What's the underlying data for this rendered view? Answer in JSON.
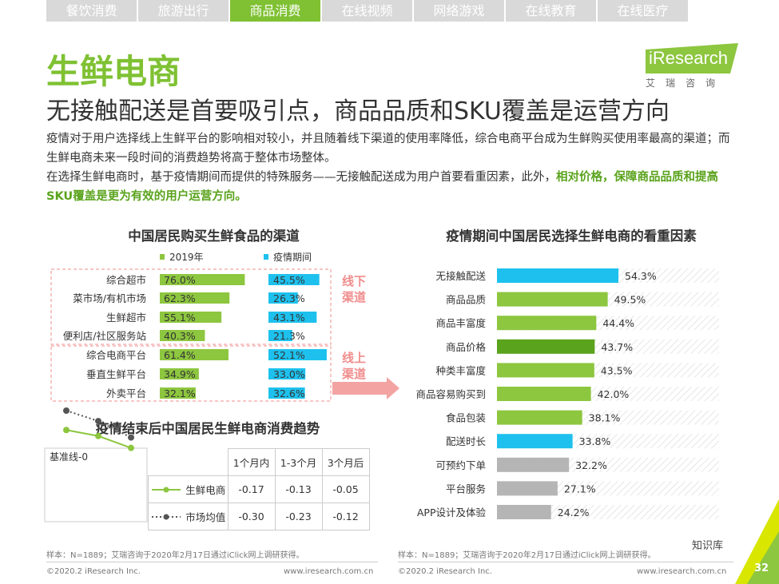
{
  "tabs": [
    "餐饮消费",
    "旅游出行",
    "商品消费",
    "在线视频",
    "网络游戏",
    "在线教育",
    "在线医疗"
  ],
  "active_tab": 2,
  "logo": {
    "text": "iResearch",
    "sub": "艾瑞咨询"
  },
  "title": "生鲜电商",
  "subtitle": "无接触配送是首要吸引点，商品品质和SKU覆盖是运营方向",
  "para1": "疫情对于用户选择线上生鲜平台的影响相对较小，并且随着线下渠道的使用率降低，综合电商平台成为生鲜购买使用率最高的渠道；而生鲜电商未来一段时间的消费趋势将高于整体市场整体。",
  "para2_plain": "在选择生鲜电商时，基于疫情期间而提供的特殊服务——无接触配送成为用户首要看重因素，此外，",
  "para2_bold": "相对价格，保障商品品质和提高SKU覆盖是更为有效的用户运营方向。",
  "colors": {
    "green": "#8dc63f",
    "blue": "#1ec1ee",
    "dark_green": "#5aa31c",
    "gray": "#b5b5b5",
    "pink": "#f08c8c"
  },
  "chart_data": [
    {
      "type": "bar",
      "title": "中国居民购买生鲜食品的渠道",
      "categories": [
        "综合超市",
        "菜市场/有机市场",
        "生鲜超市",
        "便利店/社区服务站",
        "综合电商平台",
        "垂直生鲜平台",
        "外卖平台"
      ],
      "groups": [
        {
          "label": "线下渠道",
          "count": 4
        },
        {
          "label": "线上渠道",
          "count": 3
        }
      ],
      "series": [
        {
          "name": "2019年",
          "values": [
            76.0,
            62.3,
            55.1,
            40.3,
            61.4,
            34.9,
            32.1
          ]
        },
        {
          "name": "疫情期间",
          "values": [
            45.5,
            26.3,
            43.1,
            21.3,
            52.1,
            33.0,
            32.6
          ]
        }
      ],
      "value_suffix": "%",
      "legend": "top"
    },
    {
      "type": "bar",
      "title": "疫情期间中国居民选择生鲜电商的看重因素",
      "categories": [
        "无接触配送",
        "商品品质",
        "商品丰富度",
        "商品价格",
        "种类丰富度",
        "商品容易购买到",
        "食品包装",
        "配送时长",
        "可预约下单",
        "平台服务",
        "APP设计及体验"
      ],
      "values": [
        54.3,
        49.5,
        44.4,
        43.7,
        43.5,
        42.0,
        38.1,
        33.8,
        32.2,
        27.1,
        24.2
      ],
      "bar_colors": [
        "blue",
        "green",
        "green",
        "dark_green",
        "green",
        "green",
        "green",
        "blue",
        "gray",
        "gray",
        "gray"
      ],
      "value_suffix": "%"
    },
    {
      "type": "line",
      "title": "疫情结束后中国居民生鲜电商消费趋势",
      "baseline_label": "基准线-0",
      "categories": [
        "1个月内",
        "1-3个月",
        "3个月后"
      ],
      "series": [
        {
          "name": "生鲜电商",
          "values": [
            -0.17,
            -0.13,
            -0.05
          ],
          "value_labels": [
            "-0.17",
            "-0.13",
            "-0.05"
          ]
        },
        {
          "name": "市场均值",
          "values": [
            -0.3,
            -0.23,
            -0.12
          ],
          "value_labels": [
            "-0.30",
            "-0.23",
            "-0.12"
          ]
        }
      ]
    }
  ],
  "footer_left": {
    "sample": "样本：N=1889；艾瑞咨询于2020年2月17日通过iClick网上调研获得。",
    "copy": "©2020.2 iResearch Inc.",
    "url": "www.iresearch.com.cn"
  },
  "footer_right": {
    "sample": "样本：N=1889；艾瑞咨询于2020年2月17日通过iClick网上调研获得。",
    "copy": "©2020.2 iResearch Inc.",
    "url": "www.iresearch.com.cn"
  },
  "watermark": "知识库",
  "page_number": "32"
}
